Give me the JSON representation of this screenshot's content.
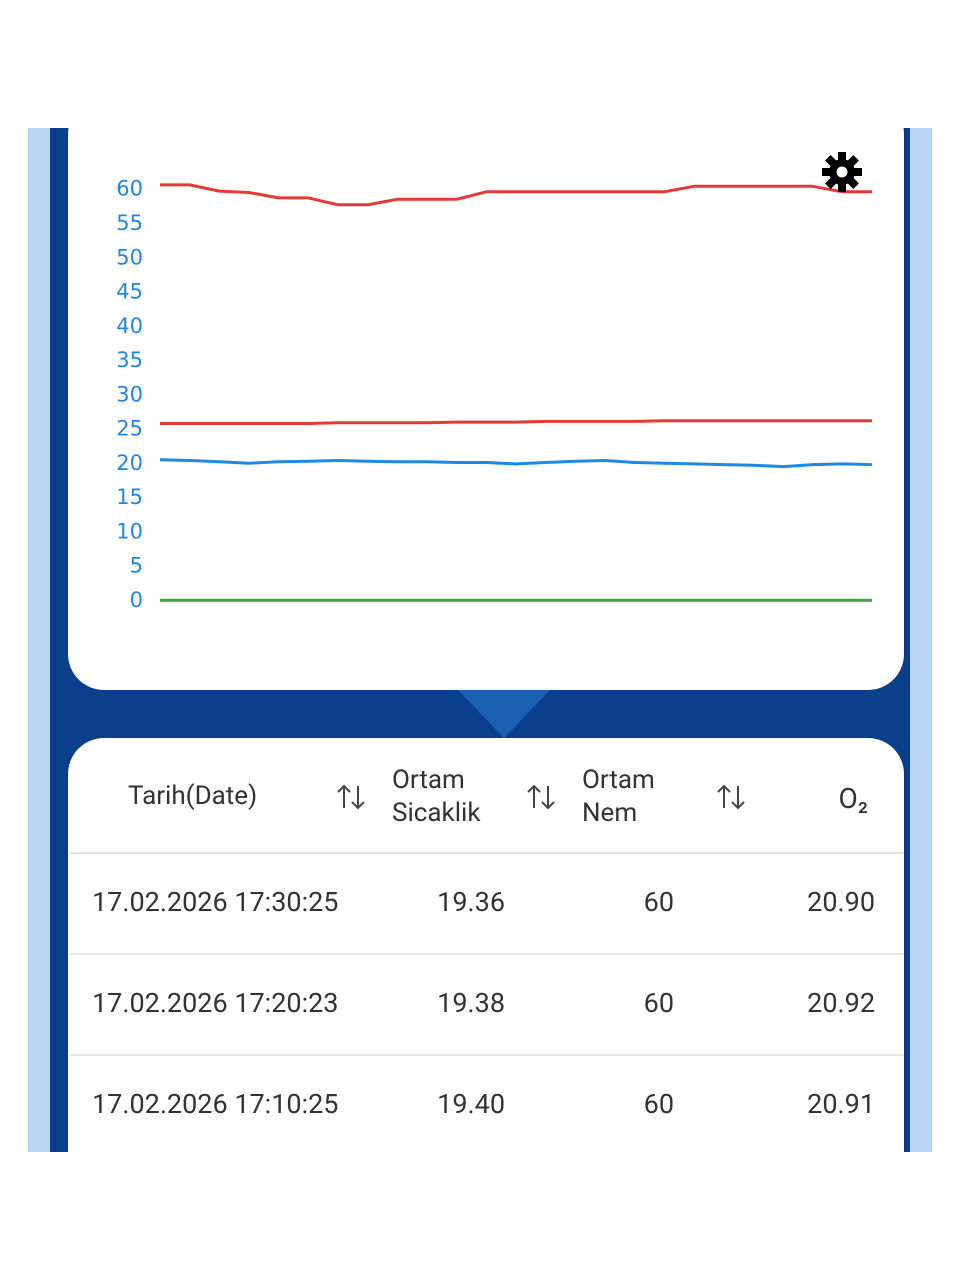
{
  "chart_data": {
    "type": "line",
    "series": [
      {
        "color": "#e53935",
        "values": [
          60.7,
          60.7,
          59.8,
          59.6,
          58.8,
          58.8,
          57.8,
          57.8,
          58.6,
          58.6,
          58.6,
          59.7,
          59.7,
          59.7,
          59.7,
          59.7,
          59.7,
          59.7,
          60.5,
          60.5,
          60.5,
          60.5,
          60.5,
          59.7,
          59.7
        ]
      },
      {
        "color": "#e53935",
        "values": [
          25.9,
          25.9,
          25.9,
          25.9,
          25.9,
          25.9,
          26.0,
          26.0,
          26.0,
          26.0,
          26.1,
          26.1,
          26.1,
          26.2,
          26.2,
          26.2,
          26.2,
          26.3,
          26.3,
          26.3,
          26.3,
          26.3,
          26.3,
          26.3,
          26.3
        ]
      },
      {
        "color": "#1e88e5",
        "values": [
          20.6,
          20.5,
          20.3,
          20.1,
          20.3,
          20.4,
          20.5,
          20.4,
          20.3,
          20.3,
          20.2,
          20.2,
          20.0,
          20.2,
          20.4,
          20.5,
          20.2,
          20.1,
          20.0,
          19.9,
          19.8,
          19.6,
          19.9,
          20.0,
          19.9
        ]
      },
      {
        "color": "#43a047",
        "values": [
          0.1,
          0.1,
          0.1,
          0.1,
          0.1,
          0.1,
          0.1,
          0.1,
          0.1,
          0.1,
          0.1,
          0.1,
          0.1,
          0.1,
          0.1,
          0.1,
          0.1,
          0.1,
          0.1,
          0.1,
          0.1,
          0.1,
          0.1,
          0.1,
          0.1
        ]
      }
    ],
    "ylim": [
      0,
      62
    ],
    "yticks": [
      0,
      5,
      10,
      15,
      20,
      25,
      30,
      35,
      40,
      45,
      50,
      55,
      60
    ],
    "tick_color": "#1e88e5"
  },
  "table": {
    "header": [
      "Tarih(Date)",
      "Ortam Sicaklik",
      "Ortam Nem",
      "O₂"
    ],
    "rows": [
      [
        "17.02.2026 17:30:25",
        "19.36",
        "60",
        "20.90"
      ],
      [
        "17.02.2026 17:20:23",
        "19.38",
        "60",
        "20.92"
      ],
      [
        "17.02.2026 17:10:25",
        "19.40",
        "60",
        "20.91"
      ]
    ]
  }
}
